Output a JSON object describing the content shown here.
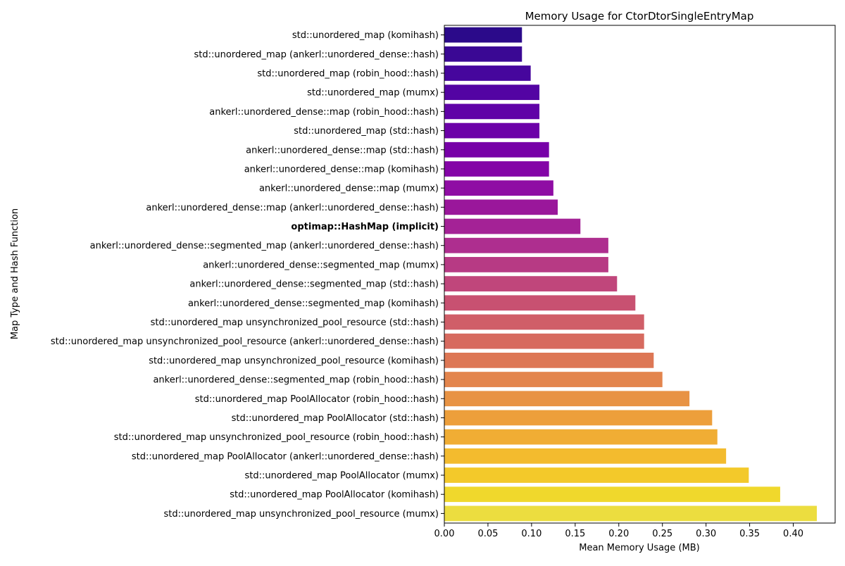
{
  "chart_data": {
    "type": "bar",
    "orientation": "horizontal",
    "title": "Memory Usage for CtorDtorSingleEntryMap",
    "xlabel": "Mean Memory Usage (MB)",
    "ylabel": "Map Type and Hash Function",
    "xlim": [
      0,
      0.448
    ],
    "xticks": [
      0.0,
      0.05,
      0.1,
      0.15,
      0.2,
      0.25,
      0.3,
      0.35,
      0.4
    ],
    "xtick_labels": [
      "0.00",
      "0.05",
      "0.10",
      "0.15",
      "0.20",
      "0.25",
      "0.30",
      "0.35",
      "0.40"
    ],
    "grid": false,
    "palette": "plasma",
    "highlighted_category": "optimap::HashMap (implicit)",
    "categories": [
      "std::unordered_map (komihash)",
      "std::unordered_map (ankerl::unordered_dense::hash)",
      "std::unordered_map (robin_hood::hash)",
      "std::unordered_map (mumx)",
      "ankerl::unordered_dense::map (robin_hood::hash)",
      "std::unordered_map (std::hash)",
      "ankerl::unordered_dense::map (std::hash)",
      "ankerl::unordered_dense::map (komihash)",
      "ankerl::unordered_dense::map (mumx)",
      "ankerl::unordered_dense::map (ankerl::unordered_dense::hash)",
      "optimap::HashMap (implicit)",
      "ankerl::unordered_dense::segmented_map (ankerl::unordered_dense::hash)",
      "ankerl::unordered_dense::segmented_map (mumx)",
      "ankerl::unordered_dense::segmented_map (std::hash)",
      "ankerl::unordered_dense::segmented_map (komihash)",
      "std::unordered_map unsynchronized_pool_resource (std::hash)",
      "std::unordered_map unsynchronized_pool_resource (ankerl::unordered_dense::hash)",
      "std::unordered_map unsynchronized_pool_resource (komihash)",
      "ankerl::unordered_dense::segmented_map (robin_hood::hash)",
      "std::unordered_map PoolAllocator (robin_hood::hash)",
      "std::unordered_map PoolAllocator (std::hash)",
      "std::unordered_map unsynchronized_pool_resource (robin_hood::hash)",
      "std::unordered_map PoolAllocator (ankerl::unordered_dense::hash)",
      "std::unordered_map PoolAllocator (mumx)",
      "std::unordered_map PoolAllocator (komihash)",
      "std::unordered_map unsynchronized_pool_resource (mumx)"
    ],
    "values": [
      0.089,
      0.089,
      0.099,
      0.109,
      0.109,
      0.109,
      0.12,
      0.12,
      0.125,
      0.13,
      0.156,
      0.188,
      0.188,
      0.198,
      0.219,
      0.229,
      0.229,
      0.24,
      0.25,
      0.281,
      0.307,
      0.313,
      0.323,
      0.349,
      0.385,
      0.427
    ],
    "colors": [
      "#2b0a8a",
      "#3a0894",
      "#46069d",
      "#5304a3",
      "#6002a7",
      "#6c01a8",
      "#7701a8",
      "#8405a7",
      "#8f0da4",
      "#9a179b",
      "#a42296",
      "#ae2e8f",
      "#b73a84",
      "#c0467b",
      "#c85171",
      "#d05e68",
      "#d76a5f",
      "#dd7755",
      "#e3854d",
      "#e89344",
      "#ed9f3b",
      "#f0ad34",
      "#f3bb2e",
      "#f3c92a",
      "#f0d82c",
      "#ecdd3f"
    ]
  }
}
